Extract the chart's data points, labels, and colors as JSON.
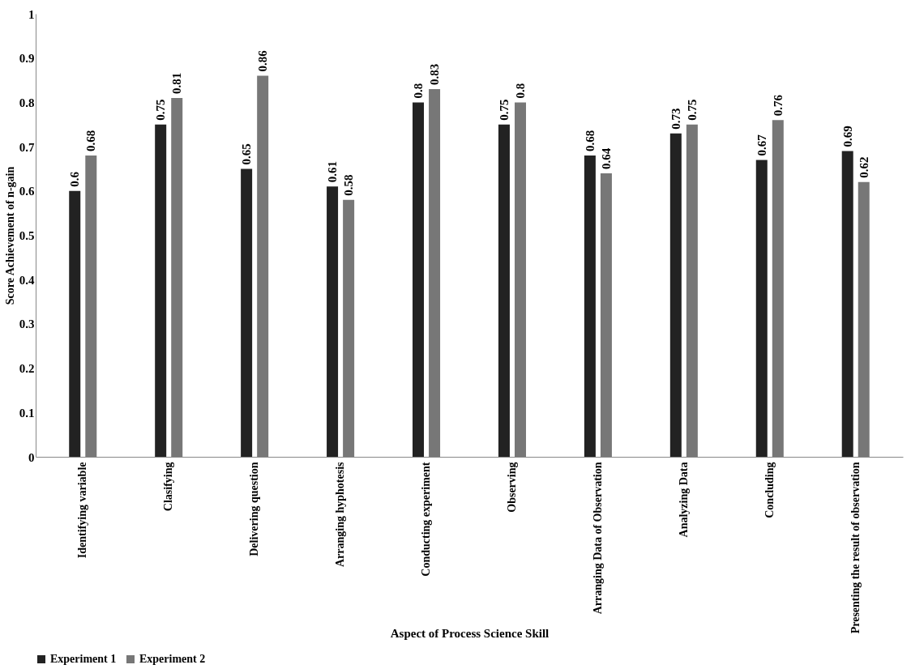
{
  "chart_data": {
    "type": "bar",
    "xlabel": "Aspect of Process Science Skill",
    "ylabel": "Score Achievement of n-gain",
    "categories": [
      "Identifying variable",
      "Clasifying",
      "Delivering question",
      "Arranging hyphotesis",
      "Conducting experiment",
      "Observing",
      "Arranging Data of Observation",
      "Analyzing Data",
      "Concluding",
      "Presenting the result of observation"
    ],
    "series": [
      {
        "name": "Experiment 1",
        "color": "#222222",
        "values": [
          0.6,
          0.75,
          0.65,
          0.61,
          0.8,
          0.75,
          0.68,
          0.73,
          0.67,
          0.69
        ]
      },
      {
        "name": "Experiment 2",
        "color": "#777777",
        "values": [
          0.68,
          0.81,
          0.86,
          0.58,
          0.83,
          0.8,
          0.64,
          0.75,
          0.76,
          0.62
        ]
      }
    ],
    "ylim": [
      0,
      1
    ],
    "yticks": [
      0,
      0.1,
      0.2,
      0.3,
      0.4,
      0.5,
      0.6,
      0.7,
      0.8,
      0.9,
      1
    ],
    "grid": false,
    "legend": "bottom",
    "data_labels": true
  }
}
